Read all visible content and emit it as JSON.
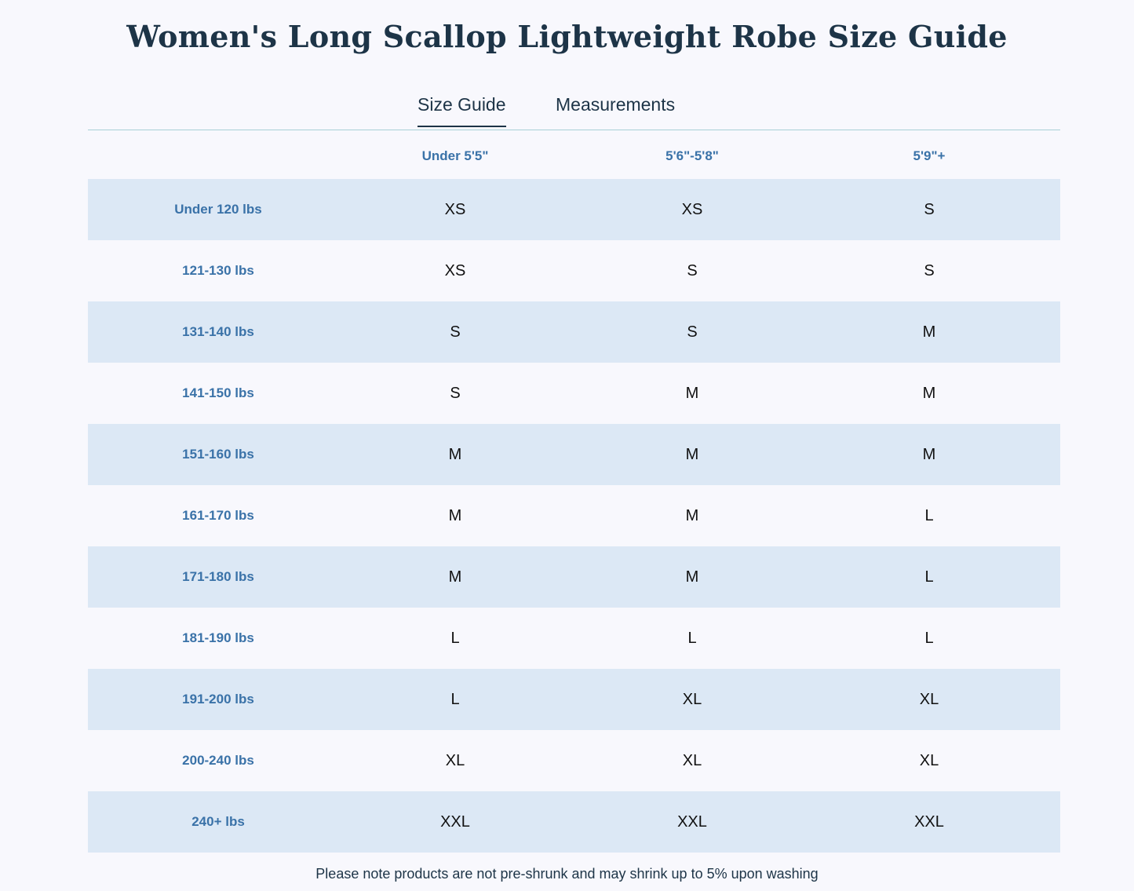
{
  "title": "Women's Long Scallop Lightweight Robe Size Guide",
  "tabs": [
    {
      "label": "Size Guide",
      "active": true
    },
    {
      "label": "Measurements",
      "active": false
    }
  ],
  "table": {
    "columns": [
      "",
      "Under 5'5\"",
      "5'6\"-5'8\"",
      "5'9\"+"
    ],
    "rows": [
      {
        "label": "Under 120 lbs",
        "cells": [
          "XS",
          "XS",
          "S"
        ]
      },
      {
        "label": "121-130 lbs",
        "cells": [
          "XS",
          "S",
          "S"
        ]
      },
      {
        "label": "131-140 lbs",
        "cells": [
          "S",
          "S",
          "M"
        ]
      },
      {
        "label": "141-150 lbs",
        "cells": [
          "S",
          "M",
          "M"
        ]
      },
      {
        "label": "151-160 lbs",
        "cells": [
          "M",
          "M",
          "M"
        ]
      },
      {
        "label": "161-170 lbs",
        "cells": [
          "M",
          "M",
          "L"
        ]
      },
      {
        "label": "171-180 lbs",
        "cells": [
          "M",
          "M",
          "L"
        ]
      },
      {
        "label": "181-190 lbs",
        "cells": [
          "L",
          "L",
          "L"
        ]
      },
      {
        "label": "191-200 lbs",
        "cells": [
          "L",
          "XL",
          "XL"
        ]
      },
      {
        "label": "200-240 lbs",
        "cells": [
          "XL",
          "XL",
          "XL"
        ]
      },
      {
        "label": "240+ lbs",
        "cells": [
          "XXL",
          "XXL",
          "XXL"
        ]
      }
    ]
  },
  "note": "Please note products are not pre-shrunk and may shrink up to 5% upon washing",
  "colors": {
    "title": "#1d3447",
    "row_header": "#3a72a8",
    "shaded_row": "#dce8f5",
    "tab_rule": "#a8d0d6"
  }
}
